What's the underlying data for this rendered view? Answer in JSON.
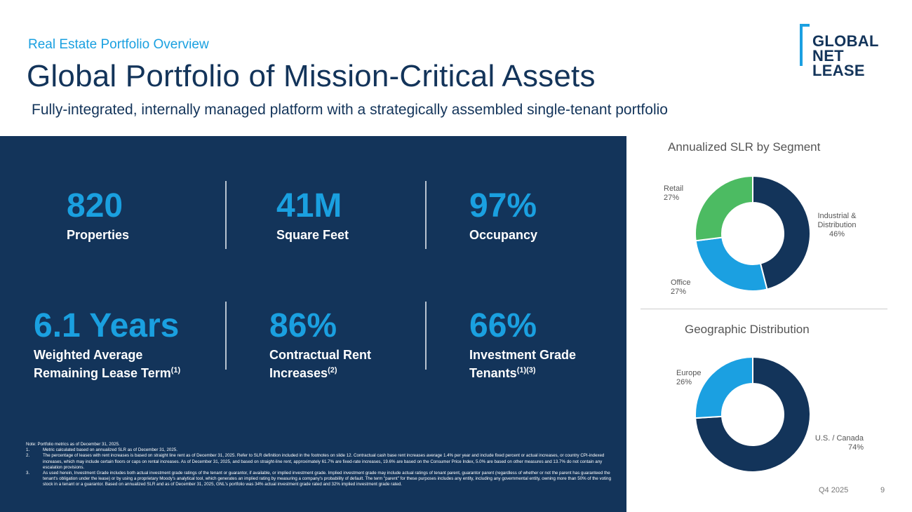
{
  "header": {
    "eyebrow": "Real Estate Portfolio Overview",
    "title": "Global Portfolio of Mission-Critical Assets",
    "subtitle": "Fully-integrated, internally managed platform with a strategically assembled single-tenant portfolio"
  },
  "logo": {
    "line1": "GLOBAL",
    "line2": "NET",
    "line3": "LEASE"
  },
  "stats": [
    {
      "value": "820",
      "label": "Properties",
      "sup": ""
    },
    {
      "value": "41M",
      "label": "Square Feet",
      "sup": ""
    },
    {
      "value": "97%",
      "label": "Occupancy",
      "sup": ""
    },
    {
      "value": "6.1 Years",
      "label_line1": "Weighted Average",
      "label_line2": "Remaining Lease Term",
      "sup": "(1)"
    },
    {
      "value": "86%",
      "label_line1": "Contractual Rent",
      "label_line2": "Increases",
      "sup": "(2)"
    },
    {
      "value": "66%",
      "label_line1": "Investment Grade",
      "label_line2": "Tenants",
      "sup": "(1)(3)"
    }
  ],
  "footnotes": {
    "note": "Note: Portfolio metrics as of December 31, 2025.",
    "items": [
      {
        "num": "1.",
        "text": "Metric calculated based on annualized SLR as of December 31, 2025."
      },
      {
        "num": "2.",
        "text": "The percentage of leases with rent increases is based on straight line rent as of December 31, 2025. Refer to SLR definition included in the footnotes on slide 12. Contractual cash base rent increases average 1.4% per year and include fixed percent or actual increases, or country CPI-indexed increases, which may include certain floors or caps on rental increases. As of December 31, 2025, and based on straight-line rent, approximately 61.7% are fixed-rate increases, 19.6% are based on the Consumer Price Index, 5.0% are based on other measures and 13.7% do not contain any escalation provisions."
      },
      {
        "num": "3.",
        "text": "As used herein, Investment Grade includes both actual investment grade ratings of the tenant or guarantor, if available, or implied investment grade. Implied investment grade may include actual ratings of tenant parent, guarantor parent (regardless of whether or not the parent has guaranteed the tenant's obligation under the lease) or by using a proprietary Moody's analytical tool, which generates an implied rating by measuring a company's probability of default. The term \"parent\" for these purposes includes any entity, including any governmental entity, owning more than 50% of the voting stock in a tenant or a guarantor. Based on annualized SLR and as of December 31, 2025, GNL's portfolio was 34% actual investment grade rated and 32% implied investment grade rated."
      }
    ]
  },
  "chart_data": [
    {
      "type": "pie",
      "title": "Annualized SLR by Segment",
      "categories": [
        "Industrial & Distribution",
        "Office",
        "Retail"
      ],
      "values": [
        46,
        27,
        27
      ],
      "value_labels": [
        "46%",
        "27%",
        "27%"
      ],
      "colors": [
        "#13345a",
        "#1ba0e1",
        "#4cbb62"
      ]
    },
    {
      "type": "pie",
      "title": "Geographic Distribution",
      "categories": [
        "U.S. / Canada",
        "Europe"
      ],
      "values": [
        74,
        26
      ],
      "value_labels": [
        "74%",
        "26%"
      ],
      "colors": [
        "#13345a",
        "#1ba0e1"
      ]
    }
  ],
  "footer": {
    "period": "Q4 2025",
    "page": "9"
  }
}
